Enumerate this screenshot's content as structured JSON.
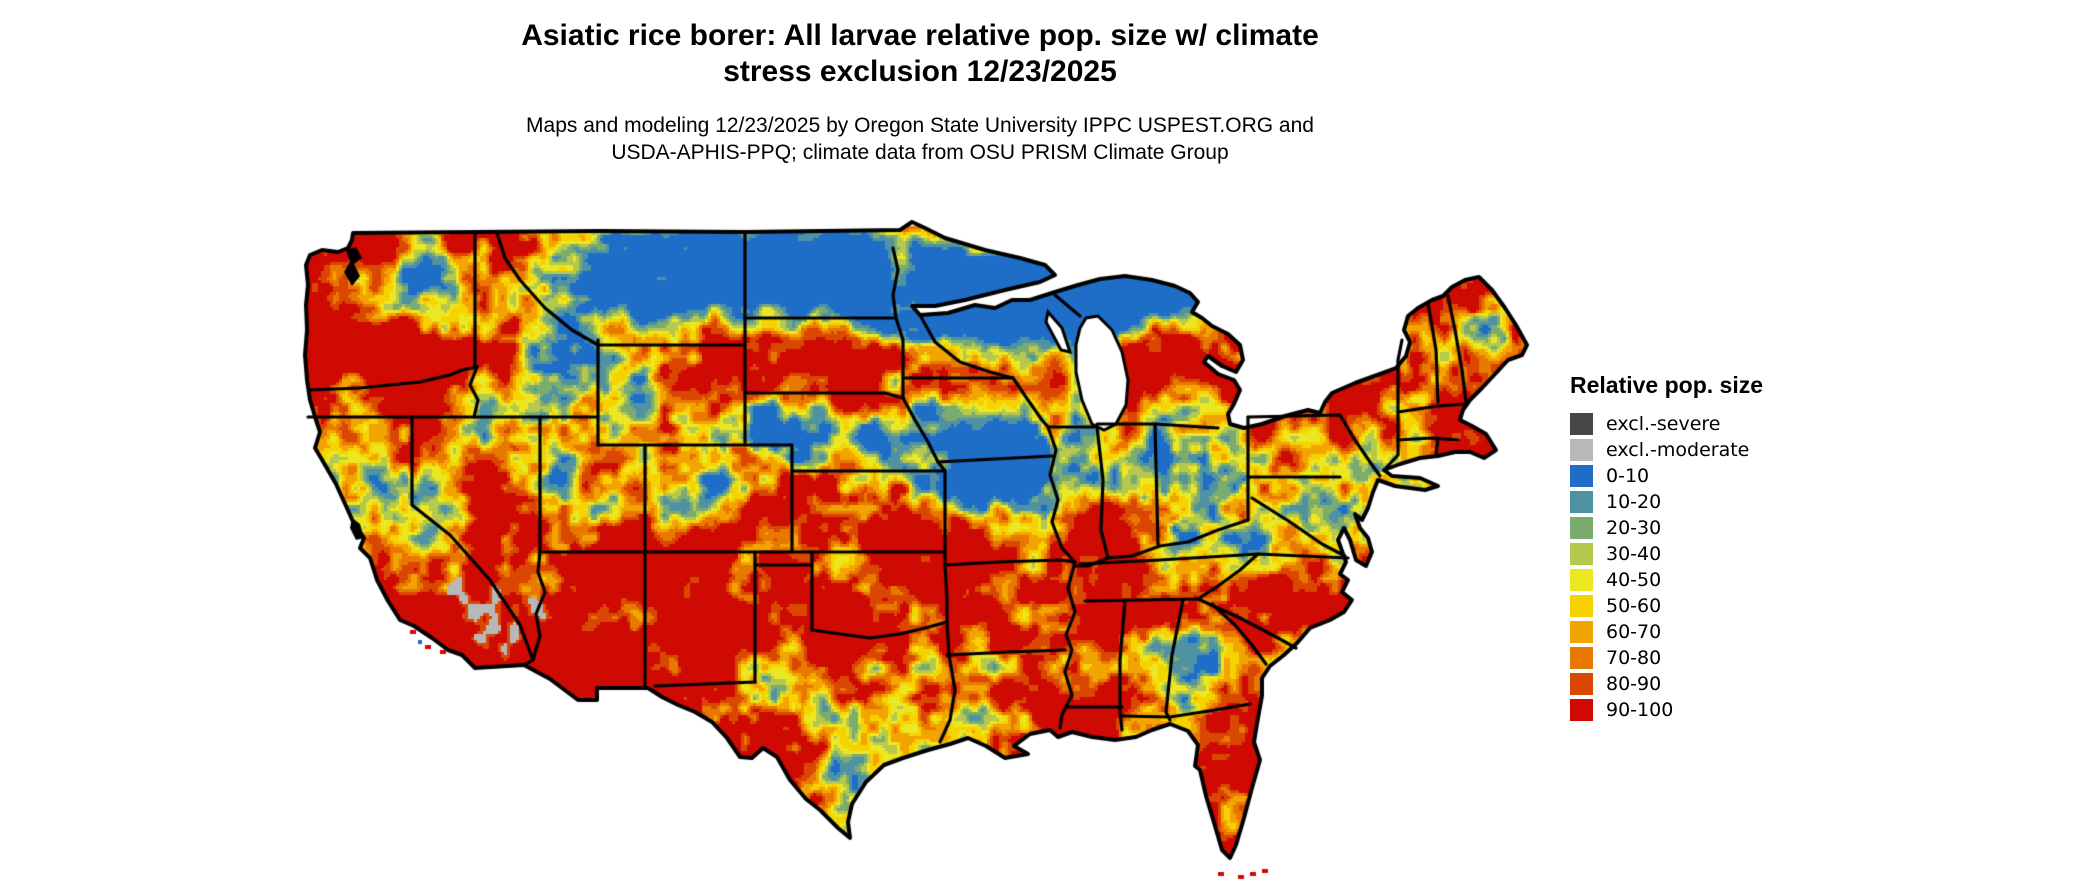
{
  "title": "Asiatic rice borer: All larvae relative pop. size w/ climate\nstress exclusion 12/23/2025",
  "subtitle": "Maps and modeling 12/23/2025 by Oregon State University IPPC USPEST.ORG and\nUSDA-APHIS-PPQ; climate data from OSU PRISM Climate Group",
  "legend": {
    "title": "Relative pop. size",
    "items": [
      {
        "label": "excl.-severe",
        "color": "#474747"
      },
      {
        "label": "excl.-moderate",
        "color": "#b8b8b8"
      },
      {
        "label": "0-10",
        "color": "#1e6ec8"
      },
      {
        "label": "10-20",
        "color": "#4e92a4"
      },
      {
        "label": "20-30",
        "color": "#7cab70"
      },
      {
        "label": "30-40",
        "color": "#b4c94e"
      },
      {
        "label": "40-50",
        "color": "#ebe723"
      },
      {
        "label": "50-60",
        "color": "#f6d300"
      },
      {
        "label": "60-70",
        "color": "#f2a403"
      },
      {
        "label": "70-80",
        "color": "#e97800"
      },
      {
        "label": "80-90",
        "color": "#da4703"
      },
      {
        "label": "90-100",
        "color": "#ce0a02"
      }
    ]
  },
  "map": {
    "region": "Contiguous United States",
    "style": "pixelated raster risk surface",
    "boundaries": "state borders",
    "background_color": "#ffffff",
    "boundary_color": "#000000",
    "water_color": "#ffffff"
  }
}
